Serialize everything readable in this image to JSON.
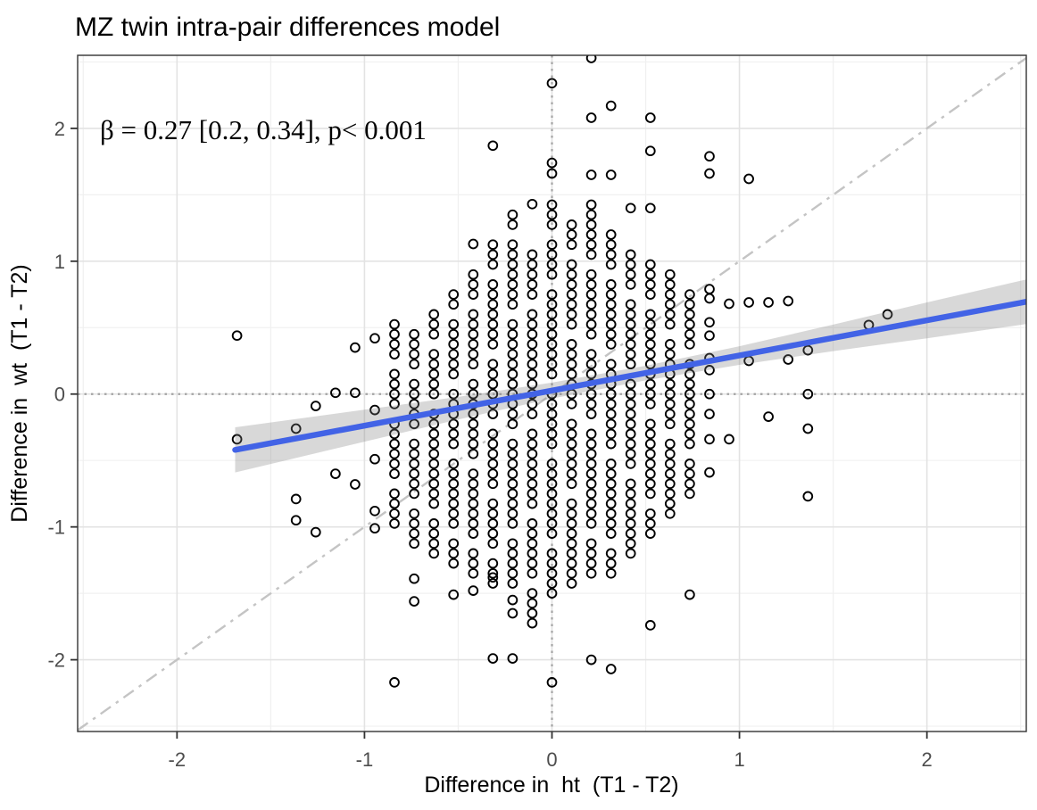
{
  "chart_data": {
    "type": "scatter",
    "title": "MZ twin intra-pair differences model",
    "annotation": "β = 0.27 [0.2, 0.34], p< 0.001",
    "stats": {
      "beta": 0.27,
      "ci_low": 0.2,
      "ci_high": 0.34,
      "p": "< 0.001"
    },
    "xlabel": "Difference in  ht  (T1 - T2)",
    "ylabel": "Difference in  wt  (T1 - T2)",
    "xlim": [
      -2.53,
      2.53
    ],
    "ylim": [
      -2.54,
      2.55
    ],
    "x_ticks": [
      -2,
      -1,
      0,
      1,
      2
    ],
    "y_ticks": [
      -2,
      -1,
      0,
      1,
      2
    ],
    "minor_ticks": [
      -2.5,
      -1.5,
      -0.5,
      0.5,
      1.5,
      2.5
    ],
    "grid": "on",
    "legend": "none",
    "y_step": 0.075,
    "point_columns": [
      {
        "x": -1.68,
        "pts": [
          0.44,
          -0.34
        ]
      },
      {
        "x": -1.365,
        "pts": [
          -0.26,
          -0.79,
          -0.95
        ]
      },
      {
        "x": -1.26,
        "pts": [
          -0.09,
          -1.04
        ]
      },
      {
        "x": -1.155,
        "pts": [
          0.01,
          -0.6
        ]
      },
      {
        "x": -1.05,
        "pts": [
          0.35,
          0.01,
          -0.68
        ]
      },
      {
        "x": -0.945,
        "pts": [
          0.42,
          -0.12,
          -0.49,
          -0.88,
          -1.01
        ]
      },
      {
        "x": -0.84,
        "stack": [
          -0.975,
          0.525
        ],
        "skip": [
          0.225,
          -0.15,
          -0.675
        ],
        "pts": [
          -2.17
        ]
      },
      {
        "x": -0.735,
        "stack": [
          -1.125,
          0.45
        ],
        "skip": [
          0.15,
          -0.3,
          -0.825
        ],
        "pts": [
          -1.39,
          -1.56
        ]
      },
      {
        "x": -0.63,
        "stack": [
          -1.2,
          0.6
        ],
        "skip": [
          0.375,
          -0.075,
          -0.9
        ],
        "pts": []
      },
      {
        "x": -0.525,
        "stack": [
          -1.275,
          0.75
        ],
        "skip": [
          0.6,
          0.075,
          -0.45,
          -1.05
        ],
        "pts": [
          -1.51
        ]
      },
      {
        "x": -0.42,
        "stack": [
          -1.35,
          0.9
        ],
        "skip": [
          0.675,
          0.15,
          -0.525,
          -1.125
        ],
        "pts": [
          -1.48,
          1.13
        ]
      },
      {
        "x": -0.315,
        "stack": [
          -1.425,
          1.125
        ],
        "skip": [
          0.9,
          0.3,
          -0.225,
          -0.75,
          -1.2
        ],
        "pts": [
          1.87,
          -1.38,
          -1.99
        ]
      },
      {
        "x": -0.21,
        "stack": [
          -1.425,
          1.35
        ],
        "skip": [
          1.2,
          0.6,
          -0.3,
          -1.05
        ],
        "pts": [
          -1.55,
          -1.65,
          -1.99
        ]
      },
      {
        "x": -0.105,
        "stack": [
          -1.725,
          1.05
        ],
        "skip": [
          0.675,
          -0.225,
          -0.9,
          -1.425
        ],
        "pts": [
          1.43
        ]
      },
      {
        "x": 0.0,
        "stack": [
          -1.5,
          1.425
        ],
        "skip": [
          1.2,
          0.825,
          0.075,
          -0.45,
          -1.125
        ],
        "pts": [
          1.66,
          1.74,
          2.34,
          -2.17
        ]
      },
      {
        "x": 0.105,
        "stack": [
          -1.425,
          1.275
        ],
        "skip": [
          1.05,
          0.45,
          -0.15,
          -0.75
        ],
        "pts": []
      },
      {
        "x": 0.21,
        "stack": [
          -1.35,
          1.425
        ],
        "skip": [
          0.975,
          0.375,
          -0.225,
          -1.05
        ],
        "pts": [
          1.65,
          2.08,
          2.53,
          -2.0
        ]
      },
      {
        "x": 0.315,
        "stack": [
          -1.275,
          1.2
        ],
        "skip": [
          0.9,
          0.3,
          -0.45,
          -1.125
        ],
        "pts": [
          1.65,
          2.17,
          -1.35,
          -2.07
        ]
      },
      {
        "x": 0.42,
        "stack": [
          -1.2,
          1.05
        ],
        "skip": [
          0.75,
          0.15,
          -0.6
        ],
        "pts": [
          1.4
        ]
      },
      {
        "x": 0.525,
        "stack": [
          -1.05,
          0.975
        ],
        "skip": [
          0.675,
          -0.15,
          -0.825
        ],
        "pts": [
          1.4,
          1.83,
          2.08,
          -1.74
        ]
      },
      {
        "x": 0.63,
        "stack": [
          -0.9,
          0.9
        ],
        "skip": [
          0.45,
          -0.3
        ],
        "pts": []
      },
      {
        "x": 0.735,
        "stack": [
          -0.75,
          0.75
        ],
        "skip": [
          0.3,
          -0.45
        ],
        "pts": [
          -1.51
        ]
      },
      {
        "x": 0.84,
        "pts": [
          1.79,
          1.66,
          0.79,
          0.72,
          0.54,
          0.44,
          0.27,
          0.18,
          0.0,
          -0.15,
          -0.34,
          -0.59
        ]
      },
      {
        "x": 0.945,
        "pts": [
          0.68,
          -0.34
        ]
      },
      {
        "x": 1.05,
        "pts": [
          1.62,
          0.69,
          0.25
        ]
      },
      {
        "x": 1.155,
        "pts": [
          0.69,
          -0.17
        ]
      },
      {
        "x": 1.26,
        "pts": [
          0.7,
          0.26
        ]
      },
      {
        "x": 1.365,
        "pts": [
          0.33,
          0.0,
          -0.26,
          -0.77
        ]
      },
      {
        "x": 1.69,
        "pts": [
          0.52
        ]
      },
      {
        "x": 1.79,
        "pts": [
          0.6
        ]
      }
    ],
    "regression_line": {
      "x1": -1.69,
      "y1": -0.42,
      "x2": 2.53,
      "y2": 0.695
    },
    "confidence_band": {
      "x": [
        -1.69,
        -1.0,
        -0.5,
        0.0,
        0.5,
        1.0,
        1.5,
        2.0,
        2.53
      ],
      "upper": [
        -0.25,
        -0.118,
        -0.021,
        0.086,
        0.213,
        0.36,
        0.523,
        0.69,
        0.863
      ],
      "lower": [
        -0.59,
        -0.358,
        -0.191,
        -0.034,
        0.103,
        0.22,
        0.323,
        0.42,
        0.527
      ]
    },
    "identity_line": {
      "style": "dash-dot",
      "from": -2.53,
      "to": 2.53
    },
    "zero_lines": {
      "style": "dotted",
      "x": 0,
      "y": 0
    },
    "colors": {
      "regression": "#4263E6",
      "band": "#7F7F7F",
      "band_opacity": 0.3,
      "point_stroke": "#000000",
      "grid_major": "#E3E3E3",
      "grid_minor": "#F0F0F0",
      "zero_line": "#A3A3A3",
      "identity": "#C4C4C4",
      "panel_border": "#343434",
      "tick": "#333333",
      "tick_label": "#4D4D4D"
    }
  }
}
